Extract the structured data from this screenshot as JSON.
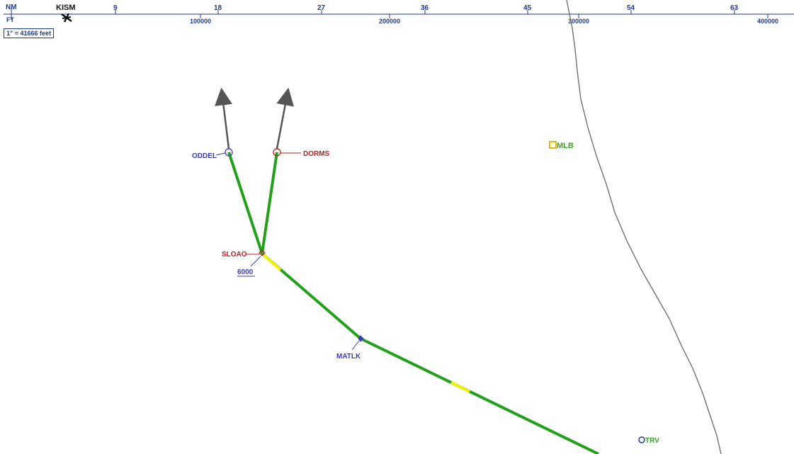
{
  "scale_bar": {
    "nm_unit": "NM",
    "ft_unit": "FT",
    "nm_ticks": [
      "9",
      "18",
      "27",
      "36",
      "45",
      "54",
      "63"
    ],
    "ft_ticks": [
      "100000",
      "200000",
      "300000",
      "400000"
    ],
    "scale_text": "1\" = 41666 feet"
  },
  "airports": {
    "kism": {
      "name": "KISM",
      "icon": "airport-icon"
    }
  },
  "waypoints": {
    "oddel": {
      "name": "ODDEL",
      "color": "#3b3bb5"
    },
    "dorms": {
      "name": "DORMS",
      "color": "#b22222"
    },
    "sloao": {
      "name": "SLOAO",
      "color": "#b22222"
    },
    "matlk": {
      "name": "MATLK",
      "color": "#3b3bb5"
    },
    "mlb": {
      "name": "MLB",
      "color": "#3aa02a"
    },
    "trv": {
      "name": "TRV",
      "color": "#3aa02a"
    }
  },
  "altitude_label": "6000",
  "colors": {
    "route": "#22a01a",
    "route_segment_marker": "#f2f200",
    "arrow": "#555555",
    "coastline": "#666666",
    "scale": "#1f3a8a"
  }
}
